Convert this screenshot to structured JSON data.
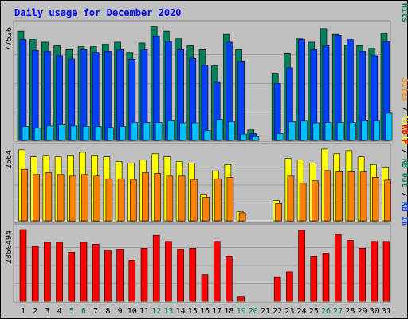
{
  "chart_data": {
    "type": "bar",
    "title": "Daily usage for December 2020",
    "days": [
      "1",
      "2",
      "3",
      "4",
      "5",
      "6",
      "7",
      "8",
      "9",
      "10",
      "11",
      "12",
      "13",
      "14",
      "15",
      "16",
      "17",
      "18",
      "19",
      "20",
      "21",
      "22",
      "23",
      "24",
      "25",
      "26",
      "27",
      "28",
      "29",
      "30",
      "31"
    ],
    "weekend_days": [
      "5",
      "6",
      "12",
      "13",
      "19",
      "20",
      "26",
      "27"
    ],
    "panels": [
      {
        "name": "top",
        "max_label": "77526",
        "legend": [
          {
            "label": "Hits",
            "color": "#00805c"
          },
          {
            "label": "Files",
            "color": "#0040ff"
          },
          {
            "label": "Pages",
            "color": "#00c0ff"
          }
        ],
        "series": [
          {
            "name": "Hits",
            "color": "#00805c",
            "values": [
              74200,
              68500,
              66700,
              64300,
              61600,
              63700,
              63700,
              65300,
              66700,
              59800,
              66200,
              77500,
              74200,
              69000,
              64300,
              61600,
              50700,
              72000,
              61600,
              7200,
              null,
              45200,
              58900,
              69000,
              66700,
              76000,
              72000,
              64300,
              64300,
              62500,
              72600
            ]
          },
          {
            "name": "Files",
            "color": "#0040ff",
            "values": [
              68500,
              61100,
              60500,
              57500,
              55300,
              61600,
              59800,
              60500,
              61600,
              55100,
              61600,
              70900,
              67200,
              61600,
              55700,
              51000,
              39500,
              66700,
              53500,
              4600,
              null,
              38800,
              49300,
              68500,
              61600,
              64300,
              71300,
              68500,
              60500,
              57500,
              67200
            ]
          },
          {
            "name": "Pages",
            "color": "#00c0ff",
            "values": [
              9500,
              8400,
              9800,
              10600,
              9800,
              9500,
              9500,
              8700,
              9500,
              12200,
              12200,
              12200,
              13400,
              11900,
              11900,
              6900,
              14300,
              12800,
              4300,
              2600,
              null,
              4600,
              12800,
              13100,
              11900,
              12200,
              12200,
              12200,
              13400,
              13100,
              18500
            ]
          }
        ]
      },
      {
        "name": "middle",
        "max_label": "2564",
        "legend": [
          {
            "label": "Visits",
            "color": "#ffff00"
          },
          {
            "label": "Sites",
            "color": "#ff8000"
          }
        ],
        "series": [
          {
            "name": "Visits",
            "color": "#ffff00",
            "values": [
              2300,
              2070,
              2120,
              2070,
              2120,
              2220,
              2120,
              2070,
              1920,
              1870,
              1970,
              2170,
              2070,
              1920,
              1870,
              860,
              1620,
              1820,
              300,
              null,
              null,
              660,
              2020,
              1970,
              1870,
              2320,
              2170,
              2270,
              2070,
              1820,
              1720
            ]
          },
          {
            "name": "Sites",
            "color": "#ff8000",
            "values": [
              1670,
              1500,
              1560,
              1500,
              1450,
              1500,
              1450,
              1360,
              1360,
              1340,
              1560,
              1540,
              1450,
              1450,
              1340,
              760,
              1360,
              1410,
              260,
              null,
              null,
              560,
              1450,
              1230,
              1300,
              1630,
              1590,
              1590,
              1580,
              1410,
              1320
            ]
          }
        ]
      },
      {
        "name": "bottom",
        "max_label": "2860494",
        "legend": [
          {
            "label": "KB In",
            "color": "#0040ff"
          },
          {
            "label": "KB Out",
            "color": "#00805c"
          },
          {
            "label": "KB F",
            "color": "#ff0000"
          }
        ],
        "series": [
          {
            "name": "KB F",
            "color": "#ff0000",
            "values": [
              2860000,
              2190000,
              2350000,
              2350000,
              1960000,
              2350000,
              2280000,
              2040000,
              2080000,
              1640000,
              2120000,
              2630000,
              2390000,
              2080000,
              2120000,
              1060000,
              2390000,
              1800000,
              200000,
              null,
              null,
              980000,
              1180000,
              2830000,
              1800000,
              1920000,
              2670000,
              2430000,
              2120000,
              2390000,
              2390000
            ]
          }
        ]
      }
    ]
  }
}
